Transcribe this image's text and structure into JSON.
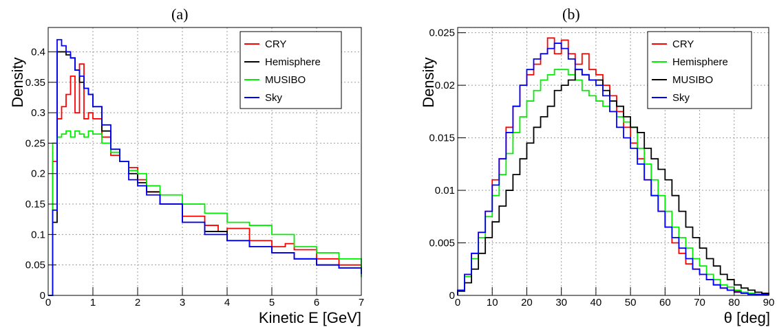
{
  "panels": [
    {
      "label": "(a)"
    },
    {
      "label": "(b)"
    }
  ],
  "chart_data": [
    {
      "type": "line",
      "title": "",
      "xlabel": "Kinetic E [GeV]",
      "ylabel": "Density",
      "xlim": [
        0,
        7
      ],
      "ylim": [
        0,
        0.44
      ],
      "xticks": [
        0,
        1,
        2,
        3,
        4,
        5,
        6,
        7
      ],
      "xtick_labels": [
        "0",
        "1",
        "2",
        "3",
        "4",
        "5",
        "6",
        "7"
      ],
      "yticks": [
        0,
        0.05,
        0.1,
        0.15,
        0.2,
        0.25,
        0.3,
        0.35,
        0.4
      ],
      "ytick_labels": [
        "0",
        "0.05",
        "0.1",
        "0.15",
        "0.2",
        "0.25",
        "0.3",
        "0.35",
        "0.4"
      ],
      "grid": true,
      "legend_position": "top-right",
      "step_histogram": true,
      "series": [
        {
          "name": "CRY",
          "color": "#ff0000",
          "x": [
            0,
            0.1,
            0.2,
            0.3,
            0.4,
            0.5,
            0.6,
            0.7,
            0.8,
            0.9,
            1.0,
            1.2,
            1.4,
            1.6,
            1.8,
            2.0,
            2.2,
            2.5,
            3.0,
            3.5,
            3.8,
            4.0,
            4.5,
            5.0,
            5.3,
            5.5,
            6.0,
            6.5,
            7.0
          ],
          "y": [
            0.0,
            0.22,
            0.29,
            0.31,
            0.33,
            0.36,
            0.3,
            0.38,
            0.29,
            0.3,
            0.29,
            0.26,
            0.23,
            0.22,
            0.21,
            0.19,
            0.17,
            0.15,
            0.13,
            0.115,
            0.105,
            0.11,
            0.09,
            0.08,
            0.085,
            0.075,
            0.06,
            0.05,
            0.04
          ]
        },
        {
          "name": "Hemisphere",
          "color": "#000000",
          "x": [
            0,
            0.1,
            0.2,
            0.3,
            0.4,
            0.5,
            0.6,
            0.7,
            0.8,
            0.9,
            1.0,
            1.2,
            1.4,
            1.6,
            1.8,
            2.0,
            2.2,
            2.5,
            3.0,
            3.5,
            4.0,
            4.5,
            5.0,
            5.5,
            6.0,
            6.5,
            7.0
          ],
          "y": [
            0.0,
            0.12,
            0.4,
            0.4,
            0.395,
            0.39,
            0.37,
            0.35,
            0.34,
            0.33,
            0.31,
            0.27,
            0.24,
            0.22,
            0.2,
            0.185,
            0.17,
            0.15,
            0.12,
            0.105,
            0.09,
            0.08,
            0.07,
            0.06,
            0.05,
            0.045,
            0.04
          ]
        },
        {
          "name": "MUSIBO",
          "color": "#00ee00",
          "x": [
            0,
            0.1,
            0.2,
            0.3,
            0.4,
            0.5,
            0.6,
            0.7,
            0.8,
            0.9,
            1.0,
            1.2,
            1.4,
            1.6,
            1.8,
            2.0,
            2.2,
            2.5,
            3.0,
            3.5,
            4.0,
            4.5,
            5.0,
            5.5,
            6.0,
            6.5,
            7.0
          ],
          "y": [
            0.0,
            0.25,
            0.26,
            0.265,
            0.27,
            0.26,
            0.27,
            0.265,
            0.26,
            0.27,
            0.265,
            0.25,
            0.235,
            0.22,
            0.205,
            0.2,
            0.18,
            0.165,
            0.15,
            0.135,
            0.12,
            0.115,
            0.1,
            0.08,
            0.07,
            0.06,
            0.03
          ]
        },
        {
          "name": "Sky",
          "color": "#0000ff",
          "x": [
            0,
            0.1,
            0.2,
            0.3,
            0.4,
            0.5,
            0.6,
            0.7,
            0.8,
            0.9,
            1.0,
            1.2,
            1.4,
            1.6,
            1.8,
            2.0,
            2.2,
            2.5,
            3.0,
            3.5,
            4.0,
            4.5,
            5.0,
            5.5,
            6.0,
            6.5,
            7.0
          ],
          "y": [
            0.0,
            0.14,
            0.42,
            0.41,
            0.4,
            0.39,
            0.37,
            0.36,
            0.34,
            0.33,
            0.31,
            0.28,
            0.24,
            0.22,
            0.19,
            0.18,
            0.165,
            0.15,
            0.12,
            0.1,
            0.09,
            0.08,
            0.07,
            0.06,
            0.05,
            0.045,
            0.035
          ]
        }
      ]
    },
    {
      "type": "line",
      "title": "",
      "xlabel": "θ [deg]",
      "ylabel": "Density",
      "xlim": [
        0,
        90
      ],
      "ylim": [
        0,
        0.0255
      ],
      "xticks": [
        0,
        10,
        20,
        30,
        40,
        50,
        60,
        70,
        80,
        90
      ],
      "xtick_labels": [
        "0",
        "10",
        "20",
        "30",
        "40",
        "50",
        "60",
        "70",
        "80",
        "90"
      ],
      "yticks": [
        0,
        0.005,
        0.01,
        0.015,
        0.02,
        0.025
      ],
      "ytick_labels": [
        "0",
        "0.005",
        "0.01",
        "0.015",
        "0.02",
        "0.025"
      ],
      "grid": true,
      "legend_position": "top-right",
      "step_histogram": true,
      "series": [
        {
          "name": "CRY",
          "color": "#ff0000",
          "x": [
            0,
            2,
            4,
            6,
            8,
            10,
            12,
            14,
            16,
            18,
            20,
            22,
            24,
            26,
            28,
            30,
            32,
            34,
            36,
            38,
            40,
            42,
            44,
            46,
            48,
            50,
            52,
            54,
            56,
            58,
            60,
            62,
            64,
            66,
            68,
            70,
            72,
            74,
            76,
            78,
            80,
            82,
            84,
            86,
            88,
            90
          ],
          "y": [
            0.0005,
            0.002,
            0.004,
            0.006,
            0.008,
            0.011,
            0.013,
            0.016,
            0.018,
            0.02,
            0.021,
            0.022,
            0.023,
            0.0245,
            0.023,
            0.0243,
            0.023,
            0.022,
            0.023,
            0.0215,
            0.021,
            0.02,
            0.019,
            0.0175,
            0.016,
            0.0145,
            0.013,
            0.011,
            0.0095,
            0.008,
            0.0065,
            0.005,
            0.004,
            0.003,
            0.0025,
            0.002,
            0.0015,
            0.001,
            0.0007,
            0.0005,
            0.0004,
            0.0003,
            0.0002,
            0.0001,
            0.0001,
            0.0
          ]
        },
        {
          "name": "Hemisphere",
          "color": "#00ee00",
          "x": [
            0,
            2,
            4,
            6,
            8,
            10,
            12,
            14,
            16,
            18,
            20,
            22,
            24,
            26,
            28,
            30,
            32,
            34,
            36,
            38,
            40,
            42,
            44,
            46,
            48,
            50,
            52,
            54,
            56,
            58,
            60,
            62,
            64,
            66,
            68,
            70,
            72,
            74,
            76,
            78,
            80,
            82,
            84,
            86,
            88,
            90
          ],
          "y": [
            0.0005,
            0.0018,
            0.0035,
            0.0055,
            0.0075,
            0.0095,
            0.0115,
            0.0135,
            0.0155,
            0.017,
            0.0185,
            0.0195,
            0.0205,
            0.021,
            0.0215,
            0.0215,
            0.021,
            0.0205,
            0.0195,
            0.019,
            0.0185,
            0.018,
            0.0175,
            0.017,
            0.0165,
            0.016,
            0.014,
            0.0125,
            0.011,
            0.0095,
            0.008,
            0.0065,
            0.0055,
            0.0045,
            0.0035,
            0.0028,
            0.002,
            0.0015,
            0.001,
            0.0008,
            0.0005,
            0.0003,
            0.0002,
            0.0001,
            0.0001,
            0.0
          ]
        },
        {
          "name": "MUSIBO",
          "color": "#000000",
          "x": [
            0,
            2,
            4,
            6,
            8,
            10,
            12,
            14,
            16,
            18,
            20,
            22,
            24,
            26,
            28,
            30,
            32,
            34,
            36,
            38,
            40,
            42,
            44,
            46,
            48,
            50,
            52,
            54,
            56,
            58,
            60,
            62,
            64,
            66,
            68,
            70,
            72,
            74,
            76,
            78,
            80,
            82,
            84,
            86,
            88,
            90
          ],
          "y": [
            0.0004,
            0.0012,
            0.0025,
            0.004,
            0.0055,
            0.007,
            0.0085,
            0.01,
            0.0115,
            0.013,
            0.0145,
            0.016,
            0.017,
            0.018,
            0.0195,
            0.02,
            0.0205,
            0.0215,
            0.021,
            0.0205,
            0.0205,
            0.0195,
            0.0185,
            0.018,
            0.017,
            0.016,
            0.0155,
            0.014,
            0.013,
            0.012,
            0.011,
            0.0095,
            0.008,
            0.0065,
            0.0055,
            0.0045,
            0.0035,
            0.0028,
            0.002,
            0.0015,
            0.001,
            0.0007,
            0.0005,
            0.0003,
            0.0002,
            0.0001
          ]
        },
        {
          "name": "Sky",
          "color": "#0000ff",
          "x": [
            0,
            2,
            4,
            6,
            8,
            10,
            12,
            14,
            16,
            18,
            20,
            22,
            24,
            26,
            28,
            30,
            32,
            34,
            36,
            38,
            40,
            42,
            44,
            46,
            48,
            50,
            52,
            54,
            56,
            58,
            60,
            62,
            64,
            66,
            68,
            70,
            72,
            74,
            76,
            78,
            80,
            82,
            84,
            86,
            88,
            90
          ],
          "y": [
            0.0005,
            0.002,
            0.004,
            0.006,
            0.008,
            0.0105,
            0.013,
            0.0155,
            0.018,
            0.02,
            0.0215,
            0.0225,
            0.023,
            0.0235,
            0.024,
            0.0235,
            0.0225,
            0.0215,
            0.021,
            0.0205,
            0.02,
            0.019,
            0.0175,
            0.016,
            0.015,
            0.014,
            0.0125,
            0.011,
            0.0095,
            0.008,
            0.0065,
            0.0055,
            0.0045,
            0.0035,
            0.0025,
            0.002,
            0.0015,
            0.001,
            0.0007,
            0.0005,
            0.0003,
            0.0002,
            0.0001,
            0.0001,
            0.0001,
            0.0
          ]
        }
      ]
    }
  ]
}
